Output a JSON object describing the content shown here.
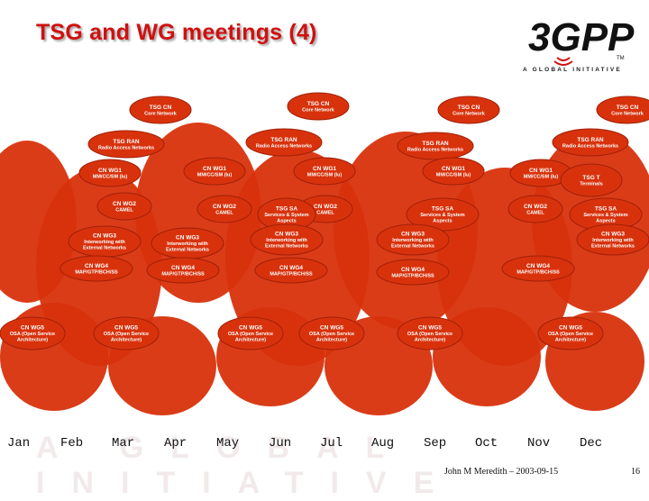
{
  "slide": {
    "title": "TSG and WG meetings (4)",
    "footer": "John M Meredith – 2003-09-15",
    "page_number": "16",
    "watermark": "A GLOBAL INITIATIVE"
  },
  "logo": {
    "text": "3GPP",
    "tagline": "A GLOBAL INITIATIVE",
    "tm": "TM"
  },
  "colors": {
    "ellipse_fill": "#d8320c",
    "ellipse_stroke": "#a02008",
    "title_red": "#d01010",
    "label_text": "#ffffff"
  },
  "months": [
    "Jan",
    "Feb",
    "Mar",
    "Apr",
    "May",
    "Jun",
    "Jul",
    "Aug",
    "Sep",
    "Oct",
    "Nov",
    "Dec"
  ],
  "meetings": {
    "tsg_cn": {
      "line1": "TSG CN",
      "line2": "Core Network"
    },
    "tsg_ran": {
      "line1": "TSG RAN",
      "line2": "Radio Access Networks"
    },
    "cn_wg1": {
      "line1": "CN WG1",
      "line2": "MM/CC/SM (lu)"
    },
    "cn_wg2": {
      "line1": "CN WG2",
      "line2": "CAMEL"
    },
    "cn_wg3": {
      "line1": "CN WG3",
      "line2": "Interworking with",
      "line3": "External Networks"
    },
    "cn_wg4": {
      "line1": "CN WG4",
      "line2": "MAP/GTP/BCH/SS"
    },
    "cn_wg5": {
      "line1": "CN WG5",
      "line2": "OSA (Open Service",
      "line3": "Architecture)"
    },
    "tsg_sa": {
      "line1": "TSG SA",
      "line2": "Services & System",
      "line3": "Aspects"
    },
    "tsg_t": {
      "line1": "TSG T",
      "line2": "Terminals"
    }
  }
}
